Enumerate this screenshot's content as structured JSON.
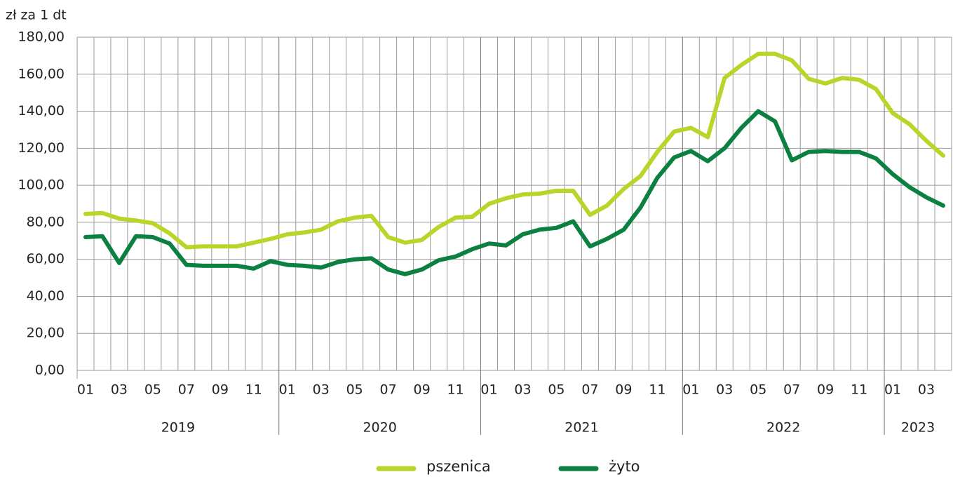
{
  "chart_data": {
    "type": "line",
    "y_axis_label": "zł za 1 dt",
    "categories": [
      "01",
      null,
      "03",
      null,
      "05",
      null,
      "07",
      null,
      "09",
      null,
      "11",
      null,
      "01",
      null,
      "03",
      null,
      "05",
      null,
      "07",
      null,
      "09",
      null,
      "11",
      null,
      "01",
      null,
      "03",
      null,
      "05",
      null,
      "07",
      null,
      "09",
      null,
      "11",
      null,
      "01",
      null,
      "03",
      null,
      "05",
      null,
      "07",
      null,
      "09",
      null,
      "11",
      null,
      "01",
      null,
      "03",
      null
    ],
    "years": [
      "2019",
      "2020",
      "2021",
      "2022",
      "2023"
    ],
    "series": [
      {
        "name": "pszenica",
        "color": "#bcd42a",
        "values": [
          84.5,
          85,
          82,
          81,
          79.5,
          74,
          66.5,
          67,
          67,
          67,
          69,
          71,
          73.5,
          74.5,
          76,
          80.5,
          82.5,
          83.5,
          72,
          69,
          70.5,
          77.5,
          82.5,
          83,
          90,
          93,
          95,
          95.5,
          97,
          97,
          84,
          89,
          98,
          105,
          118,
          129,
          131,
          126,
          158,
          165,
          171,
          171,
          167.5,
          157.5,
          155,
          158,
          157,
          152,
          139,
          133,
          124,
          116
        ]
      },
      {
        "name": "żyto",
        "color": "#0b8041",
        "values": [
          72,
          72.5,
          58,
          72.5,
          72,
          68.5,
          57,
          56.5,
          56.5,
          56.5,
          55,
          59,
          57,
          56.5,
          55.5,
          58.5,
          60,
          60.5,
          54.5,
          52,
          54.5,
          59.5,
          61.5,
          65.5,
          68.5,
          67.5,
          73.5,
          76,
          77,
          80.5,
          67,
          71,
          76,
          88,
          104,
          115,
          118.5,
          113,
          120,
          131,
          140,
          134.5,
          113.5,
          118,
          118.5,
          118,
          118,
          114.5,
          106,
          99,
          93.5,
          89
        ]
      }
    ],
    "ylim": [
      0,
      180
    ],
    "yticks": [
      {
        "value": 0,
        "label": "0,00"
      },
      {
        "value": 20,
        "label": "20,00"
      },
      {
        "value": 40,
        "label": "40,00"
      },
      {
        "value": 60,
        "label": "60,00"
      },
      {
        "value": 80,
        "label": "80,00"
      },
      {
        "value": 100,
        "label": "100,00"
      },
      {
        "value": 120,
        "label": "120,00"
      },
      {
        "value": 140,
        "label": "140,00"
      },
      {
        "value": 160,
        "label": "160,00"
      },
      {
        "value": 180,
        "label": "180,00"
      }
    ],
    "grid": true,
    "legend": "bottom"
  }
}
